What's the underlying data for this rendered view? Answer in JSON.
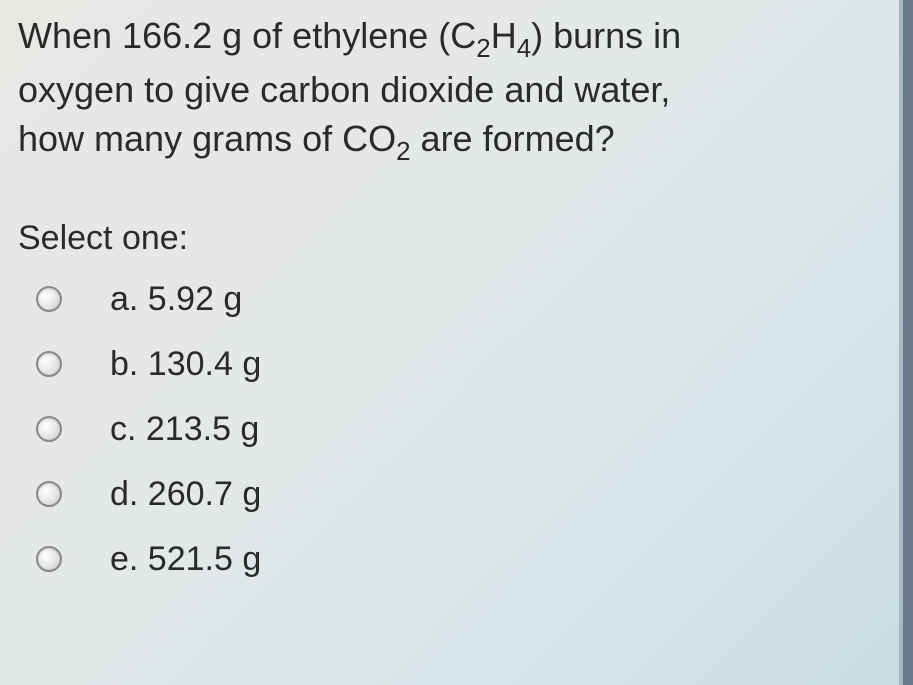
{
  "question": {
    "line1_prefix": "When 166.2 g of ethylene (C",
    "line1_sub1": "2",
    "line1_mid": "H",
    "line1_sub2": "4",
    "line1_suffix": ") burns in",
    "line2": "oxygen to give carbon dioxide and water,",
    "line3_prefix": "how many grams of CO",
    "line3_sub": "2",
    "line3_suffix": " are formed?"
  },
  "select_label": "Select one:",
  "options": {
    "a": "a. 5.92 g",
    "b": "b. 130.4 g",
    "c": "c. 213.5 g",
    "d": "d. 260.7 g",
    "e": "e. 521.5 g"
  },
  "colors": {
    "text": "#2a2a2a",
    "bg_start": "#e8e8e5",
    "bg_end": "#c8dce2",
    "radio_border": "#888888"
  },
  "typography": {
    "question_fontsize": 36,
    "option_fontsize": 34
  }
}
